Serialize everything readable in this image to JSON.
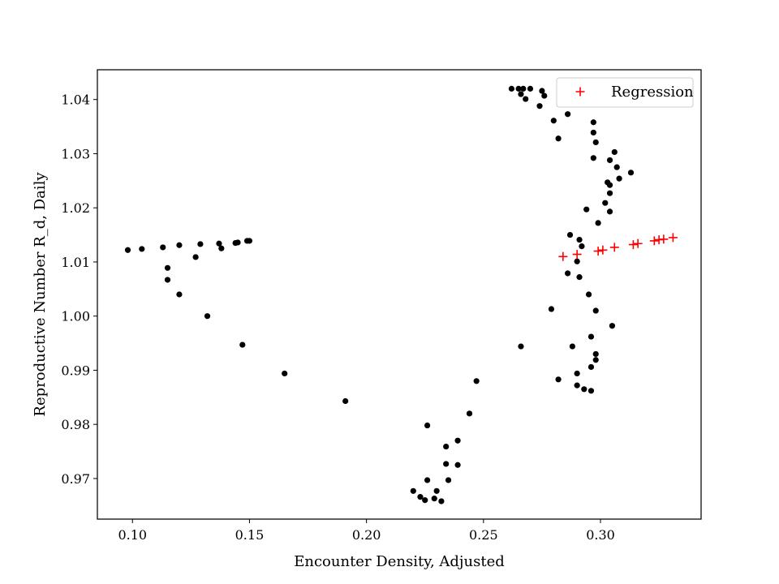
{
  "chart_data": {
    "type": "scatter",
    "title": "",
    "xlabel": "Encounter Density, Adjusted",
    "ylabel": "Reproductive Number R_d, Daily",
    "xlim": [
      0.085,
      0.343
    ],
    "ylim": [
      0.9625,
      1.0455
    ],
    "xticks": [
      0.1,
      0.15,
      0.2,
      0.25,
      0.3
    ],
    "xtick_labels": [
      "0.10",
      "0.15",
      "0.20",
      "0.25",
      "0.30"
    ],
    "yticks": [
      0.97,
      0.98,
      0.99,
      1.0,
      1.01,
      1.02,
      1.03,
      1.04
    ],
    "ytick_labels": [
      "0.97",
      "0.98",
      "0.99",
      "1.00",
      "1.01",
      "1.02",
      "1.03",
      "1.04"
    ],
    "grid": false,
    "legend_position": "top-right",
    "series": [
      {
        "marker": "dot",
        "color": "#000000",
        "points": [
          [
            0.098,
            1.0122
          ],
          [
            0.104,
            1.0124
          ],
          [
            0.113,
            1.0127
          ],
          [
            0.12,
            1.0131
          ],
          [
            0.129,
            1.0133
          ],
          [
            0.137,
            1.0134
          ],
          [
            0.144,
            1.0135
          ],
          [
            0.145,
            1.0136
          ],
          [
            0.149,
            1.0139
          ],
          [
            0.15,
            1.0139
          ],
          [
            0.138,
            1.0125
          ],
          [
            0.127,
            1.0109
          ],
          [
            0.115,
            1.0089
          ],
          [
            0.115,
            1.0067
          ],
          [
            0.12,
            1.004
          ],
          [
            0.132,
            1.0
          ],
          [
            0.147,
            0.9947
          ],
          [
            0.165,
            0.9894
          ],
          [
            0.191,
            0.9843
          ],
          [
            0.226,
            0.9798
          ],
          [
            0.239,
            0.977
          ],
          [
            0.234,
            0.9759
          ],
          [
            0.234,
            0.9727
          ],
          [
            0.239,
            0.9725
          ],
          [
            0.226,
            0.9697
          ],
          [
            0.235,
            0.9697
          ],
          [
            0.22,
            0.9677
          ],
          [
            0.223,
            0.9666
          ],
          [
            0.229,
            0.9663
          ],
          [
            0.225,
            0.966
          ],
          [
            0.23,
            0.9677
          ],
          [
            0.232,
            0.9658
          ],
          [
            0.244,
            0.982
          ],
          [
            0.247,
            0.988
          ],
          [
            0.266,
            0.9944
          ],
          [
            0.262,
            1.042
          ],
          [
            0.265,
            1.042
          ],
          [
            0.267,
            1.042
          ],
          [
            0.27,
            1.042
          ],
          [
            0.275,
            1.0416
          ],
          [
            0.276,
            1.0407
          ],
          [
            0.268,
            1.0401
          ],
          [
            0.266,
            1.041
          ],
          [
            0.274,
            1.0388
          ],
          [
            0.286,
            1.0373
          ],
          [
            0.28,
            1.0361
          ],
          [
            0.282,
            1.0328
          ],
          [
            0.297,
            1.0358
          ],
          [
            0.297,
            1.0339
          ],
          [
            0.298,
            1.0321
          ],
          [
            0.306,
            1.0303
          ],
          [
            0.297,
            1.0292
          ],
          [
            0.304,
            1.0288
          ],
          [
            0.307,
            1.0275
          ],
          [
            0.313,
            1.0265
          ],
          [
            0.308,
            1.0254
          ],
          [
            0.303,
            1.0247
          ],
          [
            0.304,
            1.0242
          ],
          [
            0.304,
            1.0227
          ],
          [
            0.302,
            1.0209
          ],
          [
            0.294,
            1.0197
          ],
          [
            0.304,
            1.0193
          ],
          [
            0.299,
            1.0172
          ],
          [
            0.287,
            1.015
          ],
          [
            0.291,
            1.0141
          ],
          [
            0.292,
            1.0129
          ],
          [
            0.29,
            1.0101
          ],
          [
            0.286,
            1.0079
          ],
          [
            0.291,
            1.0072
          ],
          [
            0.295,
            1.004
          ],
          [
            0.279,
            1.0013
          ],
          [
            0.298,
            1.001
          ],
          [
            0.305,
            0.9982
          ],
          [
            0.296,
            0.9962
          ],
          [
            0.288,
            0.9944
          ],
          [
            0.298,
            0.993
          ],
          [
            0.298,
            0.9919
          ],
          [
            0.296,
            0.9906
          ],
          [
            0.29,
            0.9894
          ],
          [
            0.282,
            0.9883
          ],
          [
            0.29,
            0.9872
          ],
          [
            0.293,
            0.9865
          ],
          [
            0.296,
            0.9862
          ]
        ]
      },
      {
        "name": "Regression",
        "marker": "plus",
        "color": "#ff0000",
        "points": [
          [
            0.284,
            1.011
          ],
          [
            0.29,
            1.0114
          ],
          [
            0.299,
            1.012
          ],
          [
            0.301,
            1.0122
          ],
          [
            0.306,
            1.0127
          ],
          [
            0.314,
            1.0132
          ],
          [
            0.316,
            1.0134
          ],
          [
            0.323,
            1.0139
          ],
          [
            0.325,
            1.0141
          ],
          [
            0.327,
            1.0142
          ],
          [
            0.331,
            1.0145
          ]
        ]
      }
    ]
  }
}
